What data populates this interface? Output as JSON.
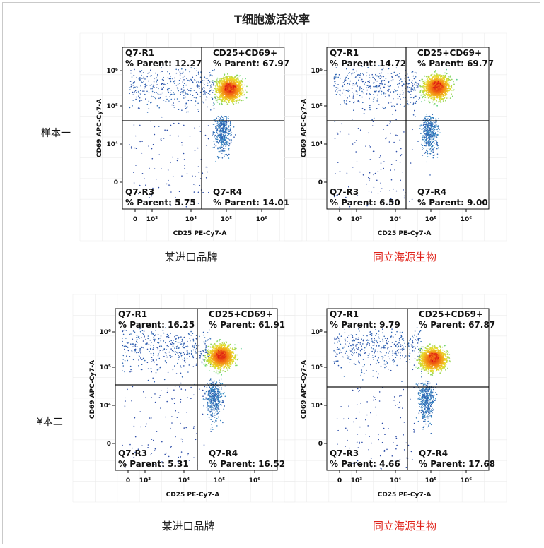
{
  "title": "T细胞激活效率",
  "rows": [
    "样本一",
    "¥本二"
  ],
  "captions": {
    "import_brand": "某进口品牌",
    "tongli": "同立海源生物"
  },
  "colors": {
    "caption_brand": "#e0241b",
    "gate_line": "#111111"
  },
  "chart_data": [
    {
      "type": "scatter",
      "sample": "样本一",
      "product": "某进口品牌",
      "xlabel": "CD25 PE-Cy7-A",
      "ylabel": "CD69 APC-Cy7-A",
      "x_scale": "biexponential",
      "y_scale": "biexponential",
      "x_ticks": [
        "0",
        "10³",
        "10⁴",
        "10⁵",
        "10⁶"
      ],
      "y_ticks": [
        "0",
        "10⁴",
        "10⁵",
        "10⁶"
      ],
      "quadrants": [
        {
          "name": "Q7-R1",
          "stat": "% Parent: 12.27"
        },
        {
          "name": "CD25+CD69+",
          "stat": "% Parent: 67.97"
        },
        {
          "name": "Q7-R3",
          "stat": "% Parent: 5.75"
        },
        {
          "name": "Q7-R4",
          "stat": "% Parent: 14.01"
        }
      ],
      "percent_parent": {
        "Q7-R1": 12.27,
        "CD25+CD69+": 67.97,
        "Q7-R3": 5.75,
        "Q7-R4": 14.01
      }
    },
    {
      "type": "scatter",
      "sample": "样本一",
      "product": "同立海源生物",
      "xlabel": "CD25 PE-Cy7-A",
      "ylabel": "CD69 APC-Cy7-A",
      "x_scale": "biexponential",
      "y_scale": "biexponential",
      "x_ticks": [
        "0",
        "10³",
        "10⁴",
        "10⁵",
        "10⁶"
      ],
      "y_ticks": [
        "0",
        "10⁴",
        "10⁵",
        "10⁶"
      ],
      "quadrants": [
        {
          "name": "Q7-R1",
          "stat": "% Parent: 14.72"
        },
        {
          "name": "CD25+CD69+",
          "stat": "% Parent: 69.77"
        },
        {
          "name": "Q7-R3",
          "stat": "% Parent: 6.50"
        },
        {
          "name": "Q7-R4",
          "stat": "% Parent: 9.00"
        }
      ],
      "percent_parent": {
        "Q7-R1": 14.72,
        "CD25+CD69+": 69.77,
        "Q7-R3": 6.5,
        "Q7-R4": 9.0
      }
    },
    {
      "type": "scatter",
      "sample": "¥本二",
      "product": "某进口品牌",
      "xlabel": "CD25 PE-Cy7-A",
      "ylabel": "CD69 APC-Cy7-A",
      "x_scale": "biexponential",
      "y_scale": "biexponential",
      "x_ticks": [
        "0",
        "10³",
        "10⁴",
        "10⁵",
        "10⁶"
      ],
      "y_ticks": [
        "0",
        "10⁴",
        "10⁵",
        "10⁶"
      ],
      "quadrants": [
        {
          "name": "Q7-R1",
          "stat": "% Parent: 16.25"
        },
        {
          "name": "CD25+CD69+",
          "stat": "% Parent: 61.91"
        },
        {
          "name": "Q7-R3",
          "stat": "% Parent: 5.31"
        },
        {
          "name": "Q7-R4",
          "stat": "% Parent: 16.52"
        }
      ],
      "percent_parent": {
        "Q7-R1": 16.25,
        "CD25+CD69+": 61.91,
        "Q7-R3": 5.31,
        "Q7-R4": 16.52
      }
    },
    {
      "type": "scatter",
      "sample": "¥本二",
      "product": "同立海源生物",
      "xlabel": "CD25 PE-Cy7-A",
      "ylabel": "CD69 APC-Cy7-A",
      "x_scale": "biexponential",
      "y_scale": "biexponential",
      "x_ticks": [
        "0",
        "10³",
        "10⁴",
        "10⁵",
        "10⁶"
      ],
      "y_ticks": [
        "0",
        "10⁴",
        "10⁵",
        "10⁶"
      ],
      "quadrants": [
        {
          "name": "Q7-R1",
          "stat": "% Parent: 9.79"
        },
        {
          "name": "CD25+CD69+",
          "stat": "% Parent: 67.87"
        },
        {
          "name": "Q7-R3",
          "stat": "% Parent: 4.66"
        },
        {
          "name": "Q7-R4",
          "stat": "% Parent: 17.68"
        }
      ],
      "percent_parent": {
        "Q7-R1": 9.79,
        "CD25+CD69+": 67.87,
        "Q7-R3": 4.66,
        "Q7-R4": 17.68
      }
    }
  ]
}
